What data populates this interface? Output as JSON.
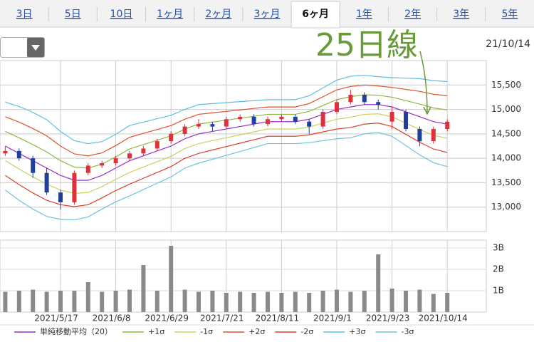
{
  "tabs": [
    "3日",
    "5日",
    "10日",
    "1ヶ月",
    "2ヶ月",
    "3ヶ月",
    "6ヶ月",
    "1年",
    "2年",
    "3年",
    "5年"
  ],
  "selected_tab": 6,
  "date": "21/10/14",
  "annotation": "25日線",
  "chart_data": [
    {
      "type": "candlestick",
      "up_color": "#e0303c",
      "down_color": "#1f3f9f",
      "open": [
        14100,
        14150,
        14000,
        13700,
        13300,
        13100,
        13700,
        13850,
        13900,
        14000,
        14100,
        14200,
        14350,
        14500,
        14650,
        14700,
        14650,
        14800,
        14850,
        14700,
        14800,
        14850,
        14750,
        14650,
        14950,
        15150,
        15300,
        15150,
        14750,
        14950,
        14600,
        14350,
        14600
      ],
      "high": [
        14250,
        14200,
        14050,
        13800,
        13350,
        13750,
        13900,
        13950,
        14050,
        14150,
        14250,
        14400,
        14550,
        14700,
        14800,
        14750,
        14850,
        14900,
        14900,
        14850,
        14900,
        14900,
        14800,
        15000,
        15200,
        15400,
        15350,
        15200,
        15050,
        15000,
        14650,
        14650,
        14800
      ],
      "low": [
        14050,
        13950,
        13600,
        13250,
        12950,
        13050,
        13650,
        13800,
        13850,
        13950,
        14050,
        14150,
        14300,
        14450,
        14600,
        14550,
        14600,
        14750,
        14650,
        14650,
        14750,
        14700,
        14500,
        14600,
        14900,
        15100,
        15100,
        15000,
        14600,
        14550,
        14250,
        14300,
        14550
      ],
      "close": [
        14150,
        14000,
        13700,
        13300,
        13100,
        13700,
        13850,
        13900,
        14000,
        14100,
        14200,
        14350,
        14500,
        14650,
        14700,
        14650,
        14800,
        14850,
        14700,
        14800,
        14850,
        14750,
        14650,
        14950,
        15150,
        15300,
        15150,
        15100,
        14950,
        14600,
        14350,
        14600,
        14750
      ],
      "series": [
        {
          "name": "単純移動平均（20）",
          "color": "#9a2ec8",
          "values": [
            14250,
            14100,
            13950,
            13800,
            13650,
            13550,
            13550,
            13650,
            13800,
            13950,
            14050,
            14150,
            14250,
            14400,
            14500,
            14550,
            14600,
            14650,
            14700,
            14750,
            14750,
            14750,
            14800,
            14900,
            15000,
            15050,
            15100,
            15100,
            15050,
            14950,
            14850,
            14750,
            14700
          ]
        },
        {
          "name": "+1σ",
          "color": "#8cba3c",
          "values": [
            14550,
            14420,
            14280,
            14130,
            13950,
            13820,
            13800,
            13880,
            14030,
            14190,
            14280,
            14370,
            14460,
            14600,
            14700,
            14740,
            14780,
            14820,
            14860,
            14900,
            14900,
            14900,
            14960,
            15080,
            15200,
            15260,
            15300,
            15290,
            15250,
            15180,
            15110,
            15030,
            14990
          ]
        },
        {
          "name": "-1σ",
          "color": "#c9d25a",
          "values": [
            13950,
            13780,
            13620,
            13470,
            13350,
            13280,
            13300,
            13420,
            13570,
            13710,
            13820,
            13930,
            14040,
            14200,
            14300,
            14360,
            14420,
            14480,
            14540,
            14600,
            14600,
            14600,
            14640,
            14720,
            14800,
            14840,
            14900,
            14910,
            14850,
            14720,
            14590,
            14470,
            14410
          ]
        },
        {
          "name": "+2σ",
          "color": "#e0502c",
          "values": [
            14850,
            14740,
            14610,
            14460,
            14250,
            14090,
            14050,
            14110,
            14260,
            14430,
            14510,
            14590,
            14670,
            14800,
            14900,
            14930,
            14960,
            14990,
            15020,
            15050,
            15050,
            15050,
            15120,
            15260,
            15400,
            15470,
            15500,
            15480,
            15450,
            15410,
            15370,
            15310,
            15280
          ]
        },
        {
          "name": "-2σ",
          "color": "#d8402c",
          "values": [
            13650,
            13460,
            13290,
            13140,
            13050,
            13010,
            13050,
            13190,
            13340,
            13470,
            13590,
            13710,
            13830,
            14000,
            14100,
            14170,
            14240,
            14310,
            14380,
            14450,
            14450,
            14450,
            14480,
            14540,
            14600,
            14630,
            14700,
            14720,
            14650,
            14490,
            14330,
            14190,
            14120
          ]
        },
        {
          "name": "+3σ",
          "color": "#5cc0e0",
          "values": [
            15150,
            15060,
            14940,
            14790,
            14550,
            14360,
            14300,
            14340,
            14490,
            14670,
            14740,
            14810,
            14880,
            15000,
            15100,
            15120,
            15140,
            15160,
            15180,
            15200,
            15200,
            15200,
            15280,
            15440,
            15600,
            15680,
            15700,
            15670,
            15650,
            15640,
            15630,
            15590,
            15570
          ]
        },
        {
          "name": "-3σ",
          "color": "#6cc4dc",
          "values": [
            13350,
            13140,
            12960,
            12810,
            12750,
            12740,
            12800,
            12960,
            13110,
            13230,
            13360,
            13490,
            13620,
            13800,
            13900,
            13980,
            14060,
            14140,
            14220,
            14300,
            14300,
            14300,
            14320,
            14360,
            14400,
            14420,
            14500,
            14530,
            14450,
            14260,
            14070,
            13910,
            13830
          ]
        }
      ],
      "ylim": [
        12500,
        16000
      ],
      "yticks": [
        {
          "value": 13000,
          "label": "13,000"
        },
        {
          "value": 13500,
          "label": "13,500"
        },
        {
          "value": 14000,
          "label": "14,000"
        },
        {
          "value": 14500,
          "label": "14,500"
        },
        {
          "value": 15000,
          "label": "15,000"
        },
        {
          "value": 15500,
          "label": "15,500"
        }
      ],
      "grid": true
    },
    {
      "type": "bar",
      "color": "#8a8a8a",
      "categories": [
        null,
        null,
        null,
        null,
        "2021/5/17",
        null,
        null,
        null,
        "2021/6/8",
        null,
        null,
        null,
        "2021/6/29",
        null,
        null,
        null,
        "2021/7/21",
        null,
        null,
        null,
        "2021/8/11",
        null,
        null,
        null,
        "2021/9/1",
        null,
        null,
        null,
        "2021/9/23",
        null,
        null,
        null,
        "2021/10/14"
      ],
      "values": [
        0.95,
        1.0,
        1.05,
        0.95,
        1.0,
        1.0,
        1.4,
        0.95,
        1.0,
        1.05,
        2.2,
        1.0,
        3.1,
        1.05,
        0.95,
        1.0,
        0.9,
        0.95,
        0.9,
        0.95,
        0.9,
        0.95,
        0.9,
        1.0,
        1.05,
        0.95,
        1.0,
        2.7,
        1.1,
        1.0,
        1.05,
        0.85,
        0.9
      ],
      "ylim": [
        0,
        3.3
      ],
      "yticks": [
        {
          "value": 1,
          "label": "1B"
        },
        {
          "value": 2,
          "label": "2B"
        },
        {
          "value": 3,
          "label": "3B"
        }
      ],
      "grid": true
    }
  ]
}
